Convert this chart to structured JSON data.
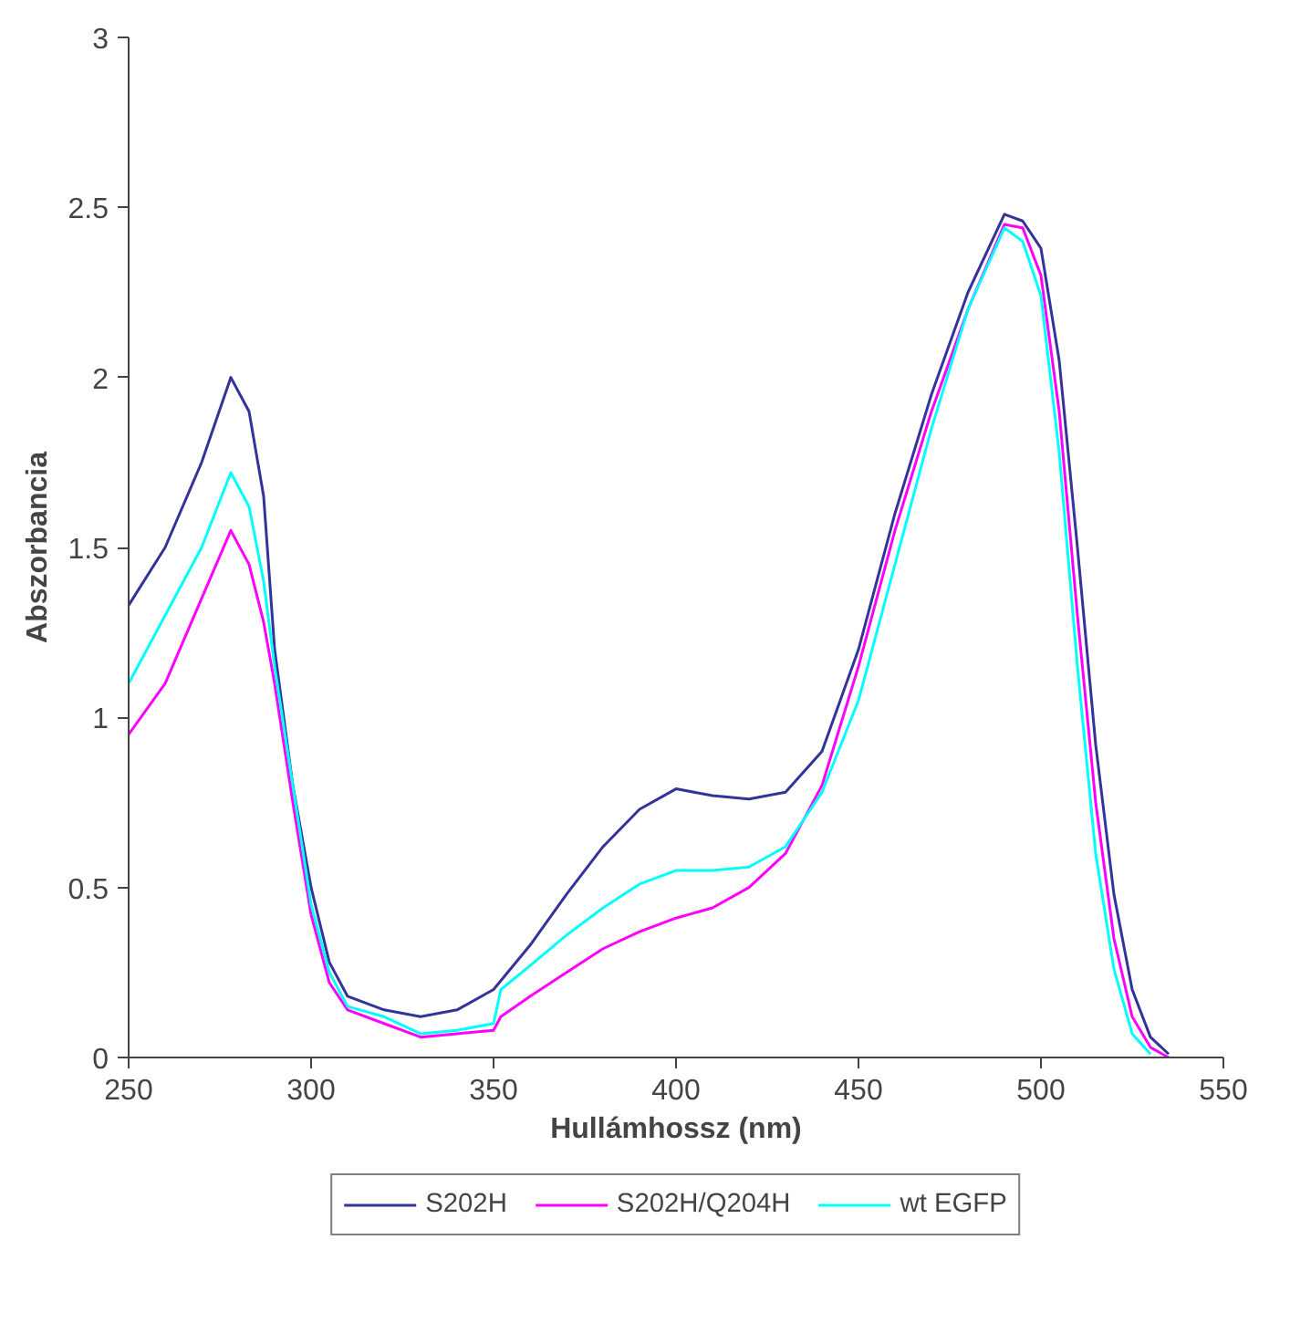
{
  "chart_data": {
    "type": "line",
    "xlabel": "Hullámhossz (nm)",
    "ylabel": "Abszorbancia",
    "xlim": [
      250,
      550
    ],
    "xticks": [
      250,
      300,
      350,
      400,
      450,
      500,
      550
    ],
    "ylim": [
      0,
      3
    ],
    "yticks": [
      0,
      0.5,
      1,
      1.5,
      2,
      2.5,
      3
    ],
    "grid": false,
    "legend": "bottom",
    "marker": "none",
    "line_style": "solid",
    "series": [
      {
        "name": "S202H",
        "color": "#333399",
        "x": [
          250,
          260,
          270,
          278,
          283,
          287,
          290,
          295,
          300,
          305,
          310,
          320,
          330,
          340,
          350,
          360,
          370,
          380,
          390,
          400,
          410,
          420,
          430,
          440,
          450,
          460,
          470,
          480,
          490,
          495,
          500,
          505,
          510,
          515,
          520,
          525,
          530,
          535
        ],
        "values": [
          1.33,
          1.5,
          1.75,
          2.0,
          1.9,
          1.65,
          1.2,
          0.8,
          0.5,
          0.28,
          0.18,
          0.14,
          0.12,
          0.14,
          0.2,
          0.33,
          0.48,
          0.62,
          0.73,
          0.79,
          0.77,
          0.76,
          0.78,
          0.9,
          1.2,
          1.6,
          1.95,
          2.25,
          2.48,
          2.46,
          2.38,
          2.05,
          1.5,
          0.92,
          0.48,
          0.2,
          0.06,
          0.01
        ]
      },
      {
        "name": "S202H/Q204H",
        "color": "#ff00ff",
        "x": [
          250,
          260,
          270,
          278,
          283,
          287,
          290,
          295,
          300,
          305,
          310,
          320,
          330,
          340,
          350,
          352,
          360,
          370,
          380,
          390,
          400,
          410,
          420,
          430,
          440,
          450,
          460,
          470,
          480,
          490,
          495,
          500,
          505,
          510,
          515,
          520,
          525,
          530,
          535
        ],
        "values": [
          0.95,
          1.1,
          1.35,
          1.55,
          1.45,
          1.28,
          1.1,
          0.75,
          0.42,
          0.22,
          0.14,
          0.1,
          0.06,
          0.07,
          0.08,
          0.12,
          0.18,
          0.25,
          0.32,
          0.37,
          0.41,
          0.44,
          0.5,
          0.6,
          0.8,
          1.15,
          1.55,
          1.9,
          2.2,
          2.45,
          2.44,
          2.3,
          1.9,
          1.3,
          0.75,
          0.35,
          0.12,
          0.03,
          0.0
        ]
      },
      {
        "name": "wt EGFP",
        "color": "#00ffff",
        "x": [
          250,
          260,
          270,
          278,
          283,
          287,
          290,
          295,
          300,
          305,
          310,
          320,
          330,
          340,
          350,
          352,
          360,
          370,
          380,
          390,
          400,
          410,
          420,
          430,
          440,
          450,
          460,
          470,
          480,
          490,
          495,
          500,
          505,
          510,
          515,
          520,
          525,
          530
        ],
        "values": [
          1.1,
          1.3,
          1.5,
          1.72,
          1.62,
          1.4,
          1.15,
          0.8,
          0.45,
          0.25,
          0.15,
          0.12,
          0.07,
          0.08,
          0.1,
          0.2,
          0.27,
          0.36,
          0.44,
          0.51,
          0.55,
          0.55,
          0.56,
          0.62,
          0.78,
          1.05,
          1.45,
          1.85,
          2.2,
          2.44,
          2.4,
          2.24,
          1.78,
          1.15,
          0.6,
          0.26,
          0.07,
          0.01
        ]
      }
    ]
  }
}
